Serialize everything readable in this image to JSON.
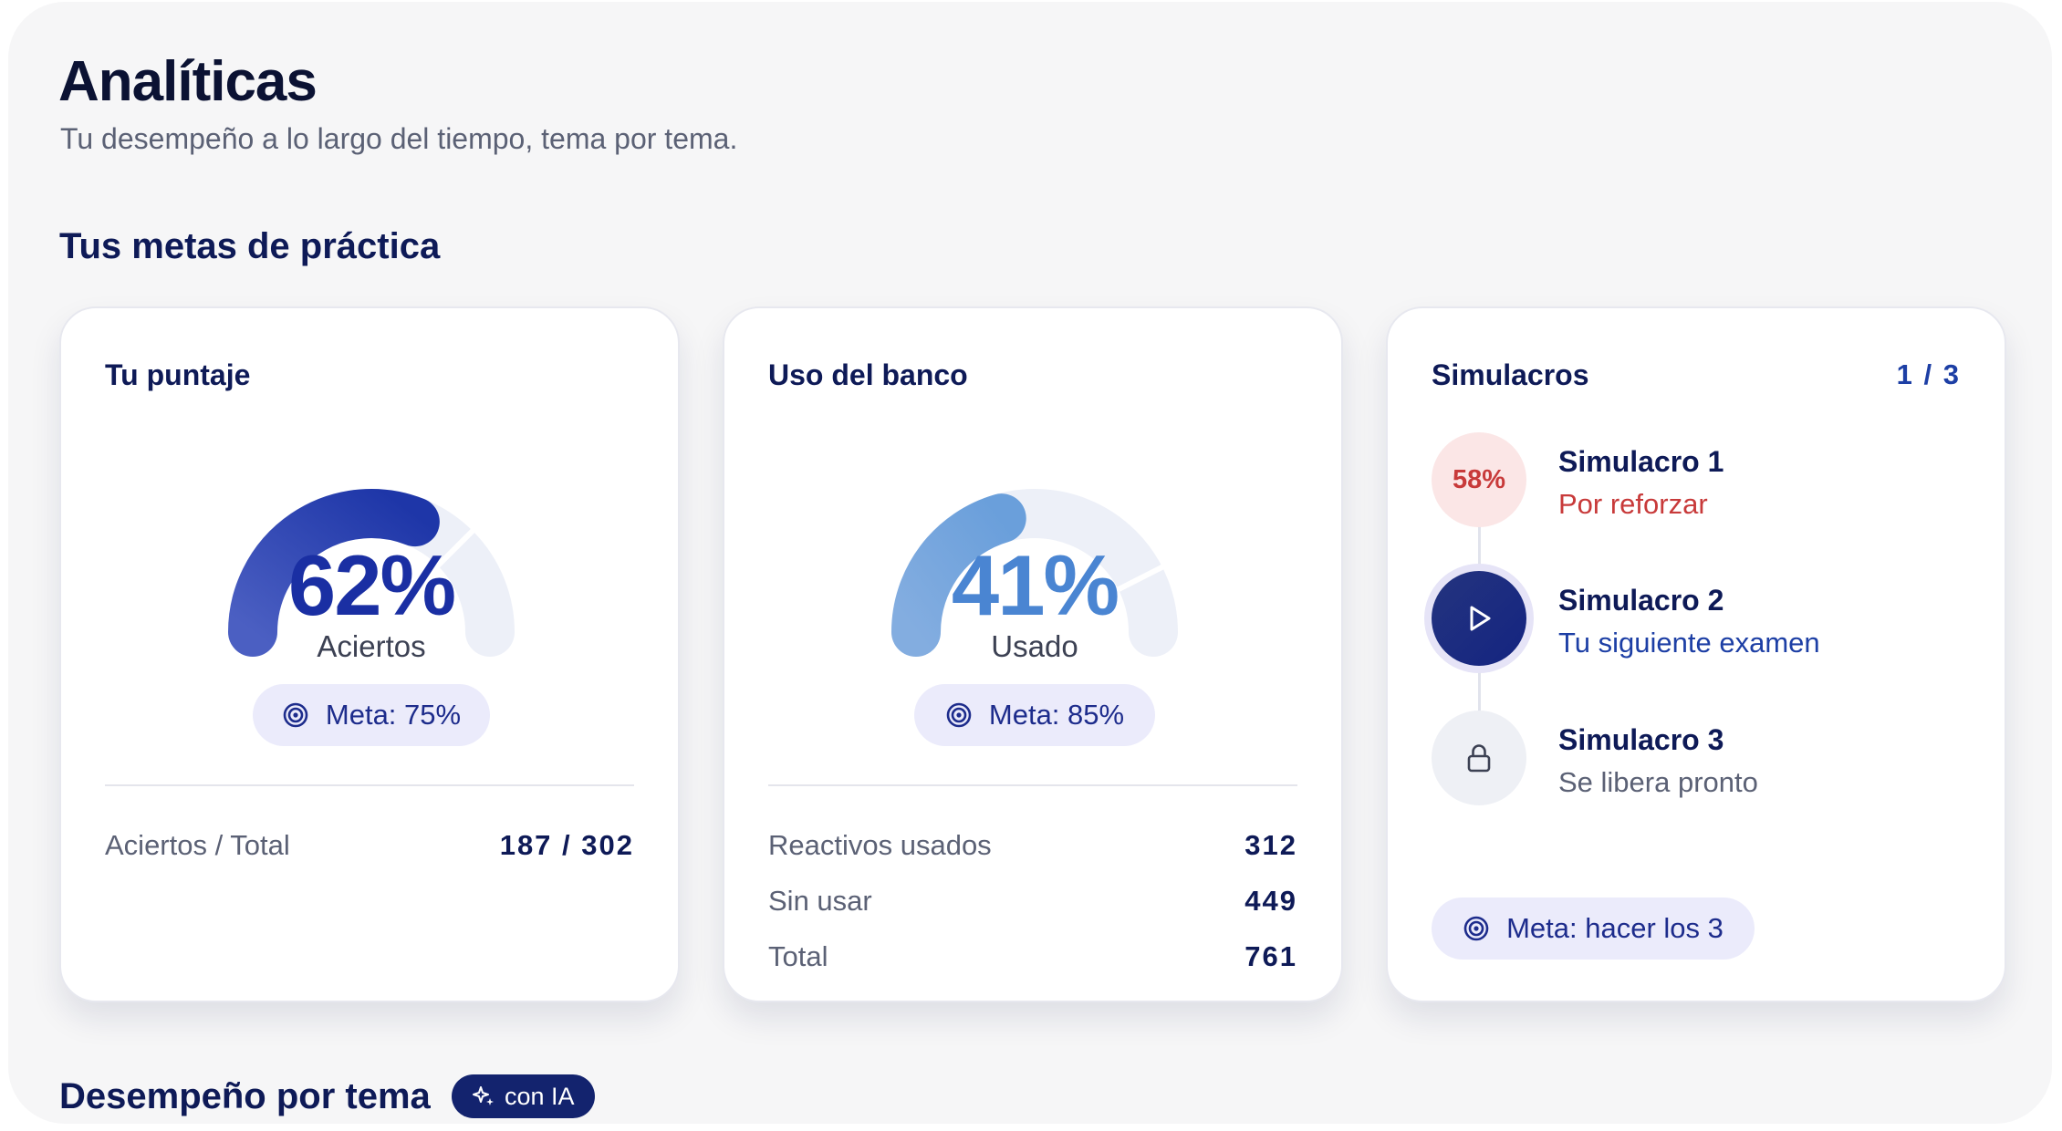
{
  "header": {
    "title": "Analíticas",
    "subtitle": "Tu desempeño a lo largo del tiempo, tema por tema."
  },
  "practice_goals": {
    "title": "Tus metas de práctica"
  },
  "score_card": {
    "title": "Tu puntaje",
    "percent": 62,
    "percent_label": "62%",
    "caption": "Aciertos",
    "goal_icon": "target-icon",
    "goal_label": "Meta: 75%",
    "goal_percent": 75,
    "stats": [
      {
        "label": "Aciertos / Total",
        "value": "187 / 302"
      }
    ],
    "colors": {
      "fill_start": "#4b5fc2",
      "fill_end": "#1e36a8",
      "track": "#edf0f8",
      "text": "#1a2fa3"
    }
  },
  "bank_card": {
    "title": "Uso del banco",
    "percent": 41,
    "percent_label": "41%",
    "caption": "Usado",
    "goal_icon": "target-icon",
    "goal_label": "Meta: 85%",
    "goal_percent": 85,
    "stats": [
      {
        "label": "Reactivos usados",
        "value": "312"
      },
      {
        "label": "Sin usar",
        "value": "449"
      },
      {
        "label": "Total",
        "value": "761"
      }
    ],
    "colors": {
      "fill_start": "#83ade0",
      "fill_end": "#6a9fdb",
      "track": "#edf0f8",
      "text": "#4a85d2"
    }
  },
  "mock_card": {
    "title": "Simulacros",
    "counter": "1 / 3",
    "items": [
      {
        "badge": "58%",
        "name": "Simulacro 1",
        "status": "Por reforzar",
        "state": "score",
        "status_color": "#c83a3a"
      },
      {
        "badge_icon": "play-icon",
        "name": "Simulacro 2",
        "status": "Tu siguiente examen",
        "state": "current",
        "status_color": "#1d3fa5"
      },
      {
        "badge_icon": "lock-icon",
        "name": "Simulacro 3",
        "status": "Se libera pronto",
        "state": "locked",
        "status_color": "#5b6175"
      }
    ],
    "goal_icon": "target-icon",
    "goal_label": "Meta: hacer los 3"
  },
  "topic_performance": {
    "title": "Desempeño por tema",
    "badge_icon": "sparkle-icon",
    "badge_label": "con IA"
  }
}
